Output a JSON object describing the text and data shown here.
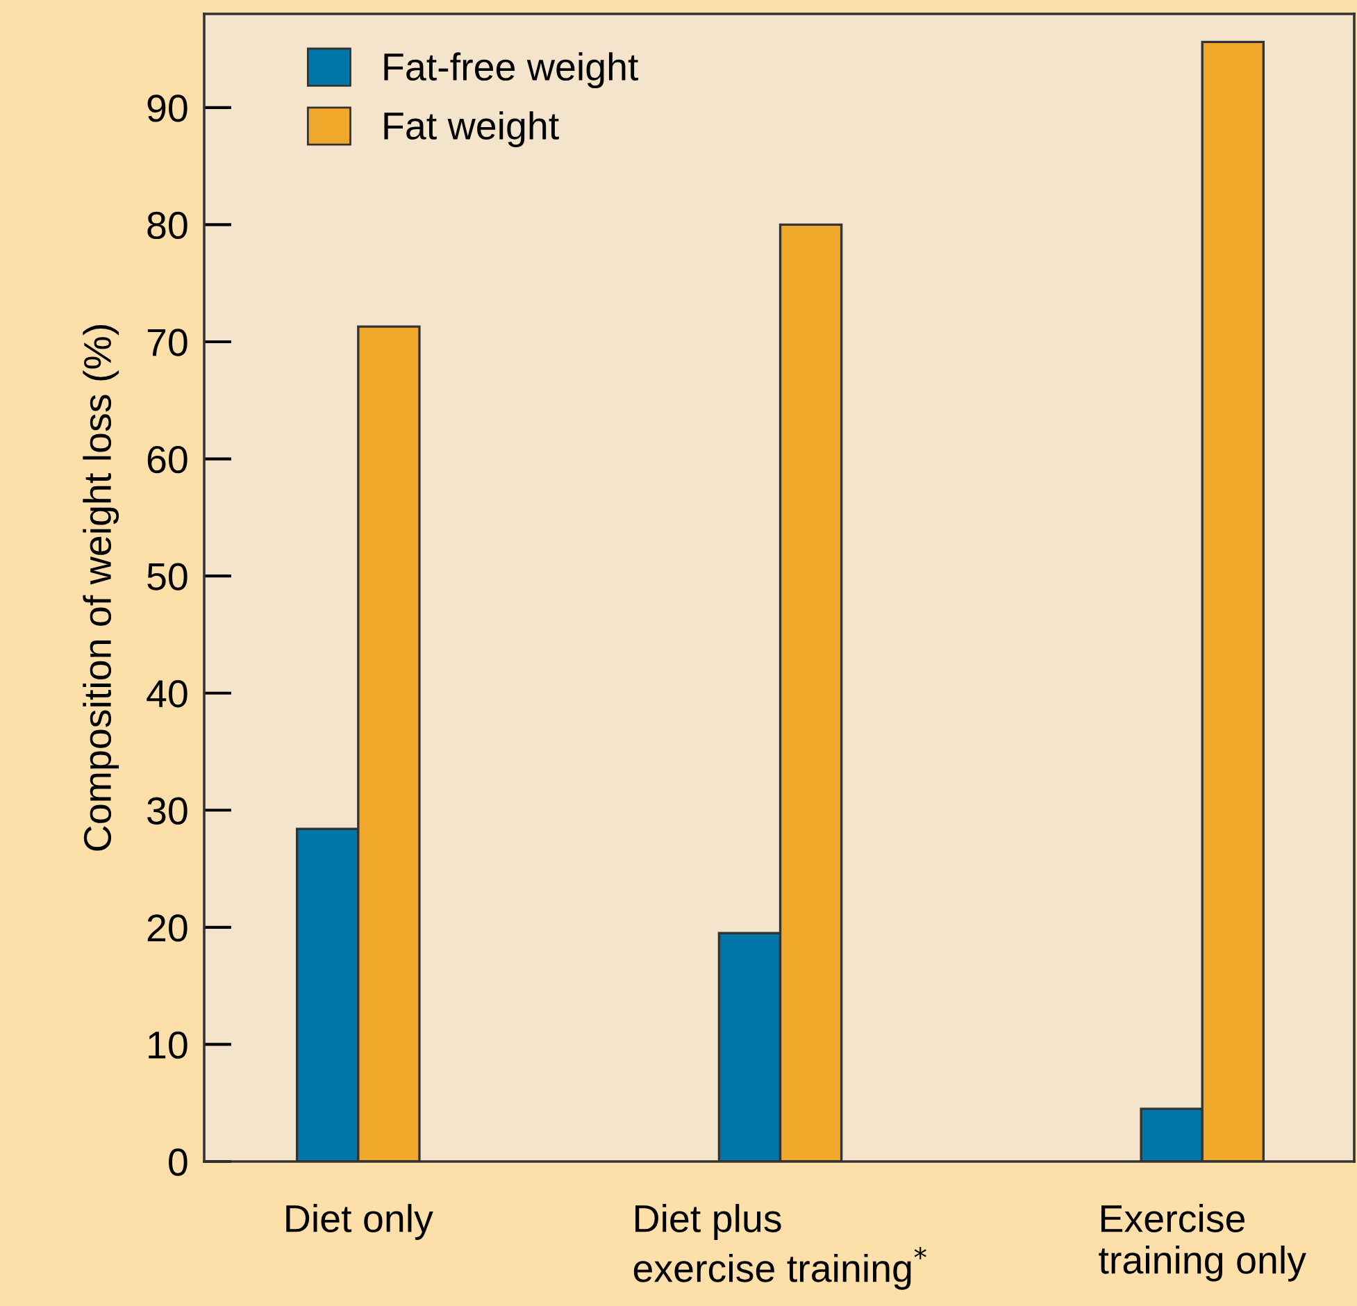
{
  "chart_data": {
    "type": "bar",
    "ylabel": "Composition of weight loss (%)",
    "categories": [
      "Diet only",
      "Diet plus\nexercise training$^{*}$",
      "Exercise\ntraining only"
    ],
    "series": [
      {
        "name": "Fat-free weight",
        "color": "#0077a8",
        "values": [
          28.4,
          19.5,
          4.5
        ]
      },
      {
        "name": "Fat weight",
        "color": "#f0a82a",
        "values": [
          71.3,
          80.0,
          95.6
        ]
      }
    ],
    "ylim": [
      0,
      98
    ],
    "yticks": [
      0,
      10,
      20,
      30,
      40,
      50,
      60,
      70,
      80,
      90
    ],
    "grid": false,
    "legend": "top left"
  }
}
